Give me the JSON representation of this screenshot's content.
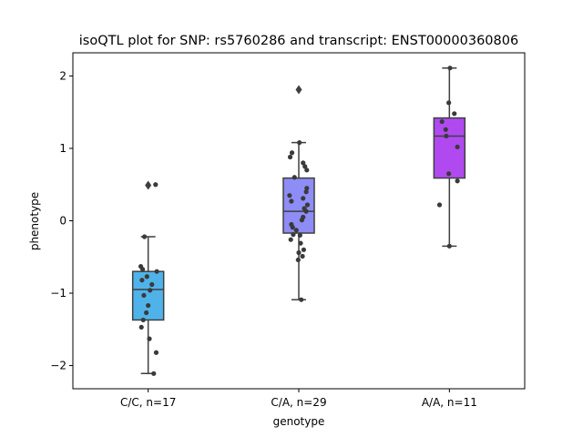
{
  "chart_data": {
    "type": "box",
    "title": "isoQTL plot for SNP: rs5760286 and transcript: ENST00000360806",
    "xlabel": "genotype",
    "ylabel": "phenotype",
    "ylim": [
      -2.32,
      2.32
    ],
    "yticks": [
      -2,
      -1,
      0,
      1,
      2
    ],
    "ytick_labels": [
      "−2",
      "−1",
      "0",
      "1",
      "2"
    ],
    "grid": false,
    "categories": [
      "C/C, n=17",
      "C/A, n=29",
      "A/A, n=11"
    ],
    "colors": [
      "#4fb3ea",
      "#8e8cf5",
      "#b04af0"
    ],
    "point_color": "#3a3a3a",
    "boxes": [
      {
        "label": "C/C, n=17",
        "q1": -1.37,
        "median": -0.95,
        "q3": -0.7,
        "whisker_low": -2.11,
        "whisker_high": -0.22,
        "outliers": [
          0.49
        ],
        "points": [
          0.5,
          -0.22,
          -0.63,
          -0.67,
          -0.7,
          -0.77,
          -0.82,
          -0.88,
          -0.96,
          -1.03,
          -1.17,
          -1.27,
          -1.37,
          -1.47,
          -1.63,
          -1.82,
          -2.11
        ],
        "jitter": [
          0.12,
          -0.06,
          -0.12,
          -0.09,
          0.14,
          -0.02,
          -0.1,
          0.06,
          0.03,
          -0.07,
          0.0,
          -0.03,
          -0.08,
          -0.11,
          0.02,
          0.13,
          0.09
        ]
      },
      {
        "label": "C/A, n=29",
        "q1": -0.17,
        "median": 0.13,
        "q3": 0.59,
        "whisker_low": -1.09,
        "whisker_high": 1.08,
        "outliers": [
          1.81
        ],
        "points": [
          1.08,
          0.94,
          0.88,
          0.8,
          0.75,
          0.7,
          0.6,
          0.45,
          0.4,
          0.35,
          0.31,
          0.27,
          0.17,
          0.13,
          0.05,
          0.01,
          -0.05,
          -0.09,
          -0.13,
          -0.19,
          -0.26,
          -0.31,
          -0.4,
          -0.44,
          -0.49,
          -0.54,
          -1.09,
          -0.2,
          0.22
        ],
        "jitter": [
          0.01,
          -0.11,
          -0.14,
          0.07,
          0.1,
          0.13,
          -0.07,
          0.13,
          0.12,
          -0.15,
          0.07,
          -0.12,
          0.09,
          0.12,
          0.07,
          0.05,
          -0.12,
          -0.1,
          -0.04,
          -0.09,
          -0.13,
          0.03,
          0.08,
          0.0,
          0.06,
          -0.01,
          0.04,
          0.02,
          0.14
        ]
      },
      {
        "label": "A/A, n=11",
        "q1": 0.59,
        "median": 1.17,
        "q3": 1.42,
        "whisker_low": -0.35,
        "whisker_high": 2.11,
        "outliers": [],
        "points": [
          2.11,
          1.63,
          1.48,
          1.37,
          1.26,
          1.17,
          1.02,
          0.65,
          0.55,
          0.22,
          -0.35
        ],
        "jitter": [
          0.01,
          -0.01,
          0.08,
          -0.12,
          -0.06,
          -0.05,
          0.13,
          -0.01,
          0.13,
          -0.16,
          0.0
        ]
      }
    ]
  }
}
